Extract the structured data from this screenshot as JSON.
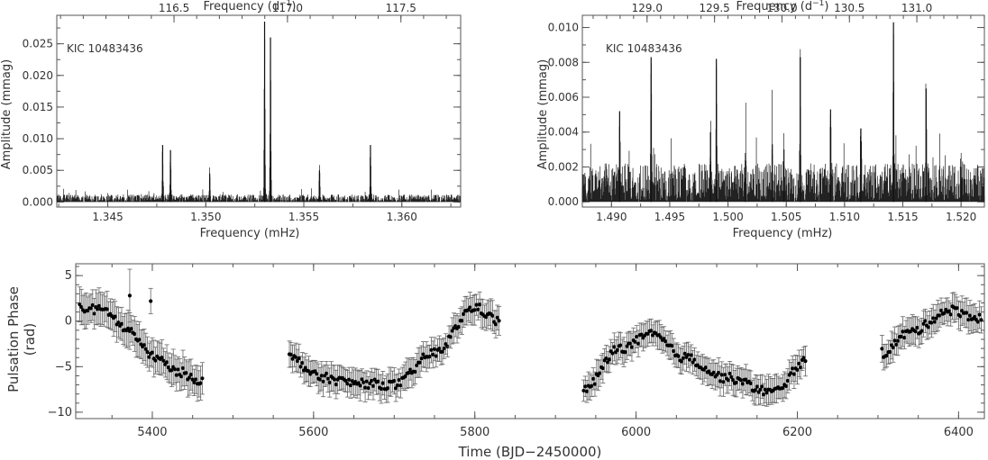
{
  "chart_data": [
    {
      "type": "line",
      "panel": "top-left",
      "annotation": "KIC 10483436",
      "xlabel": "Frequency (mHz)",
      "x2label": "Frequency (d",
      "x2label_sup": "−1",
      "x2label_close": ")",
      "ylabel": "Amplitude (mmag)",
      "xlim": [
        1.3424,
        1.363
      ],
      "ylim": [
        -0.0008,
        0.0295
      ],
      "xticks": [
        1.345,
        1.35,
        1.355,
        1.36
      ],
      "xtick_labels": [
        "1.345",
        "1.350",
        "1.355",
        "1.360"
      ],
      "yticks": [
        0.0,
        0.005,
        0.01,
        0.015,
        0.02,
        0.025
      ],
      "ytick_labels": [
        "0.000",
        "0.005",
        "0.010",
        "0.015",
        "0.020",
        "0.025"
      ],
      "x2ticks": [
        116.5,
        117.0,
        117.5
      ],
      "x2tick_labels": [
        "116.5",
        "117.0",
        "117.5"
      ],
      "noise_level": 0.0012,
      "peaks": [
        {
          "x": 1.3478,
          "y": 0.009
        },
        {
          "x": 1.3482,
          "y": 0.0082
        },
        {
          "x": 1.3502,
          "y": 0.0045
        },
        {
          "x": 1.353,
          "y": 0.0285
        },
        {
          "x": 1.3533,
          "y": 0.026
        },
        {
          "x": 1.3558,
          "y": 0.005
        },
        {
          "x": 1.3584,
          "y": 0.009
        }
      ]
    },
    {
      "type": "line",
      "panel": "top-right",
      "annotation": "KIC 10483436",
      "xlabel": "Frequency (mHz)",
      "x2label": "Frequency (d",
      "x2label_sup": "−1",
      "x2label_close": ")",
      "ylabel": "Amplitude (mmag)",
      "xlim": [
        1.4875,
        1.522
      ],
      "ylim": [
        -0.0003,
        0.0107
      ],
      "xticks": [
        1.49,
        1.495,
        1.5,
        1.505,
        1.51,
        1.515,
        1.52
      ],
      "xtick_labels": [
        "1.490",
        "1.495",
        "1.500",
        "1.505",
        "1.510",
        "1.515",
        "1.520"
      ],
      "yticks": [
        0.0,
        0.002,
        0.004,
        0.006,
        0.008,
        0.01
      ],
      "ytick_labels": [
        "0.000",
        "0.002",
        "0.004",
        "0.006",
        "0.008",
        "0.010"
      ],
      "x2ticks": [
        129.0,
        129.5,
        130.0,
        130.5,
        131.0
      ],
      "x2tick_labels": [
        "129.0",
        "129.5",
        "130.0",
        "130.5",
        "131.0"
      ],
      "noise_level": 0.0022,
      "peaks": [
        {
          "x": 1.4907,
          "y": 0.0052
        },
        {
          "x": 1.4934,
          "y": 0.0083
        },
        {
          "x": 1.4985,
          "y": 0.004
        },
        {
          "x": 1.499,
          "y": 0.0082
        },
        {
          "x": 1.5015,
          "y": 0.0028
        },
        {
          "x": 1.5038,
          "y": 0.0033
        },
        {
          "x": 1.5048,
          "y": 0.003
        },
        {
          "x": 1.5062,
          "y": 0.0083
        },
        {
          "x": 1.5088,
          "y": 0.0053
        },
        {
          "x": 1.5114,
          "y": 0.0042
        },
        {
          "x": 1.5142,
          "y": 0.0103
        },
        {
          "x": 1.517,
          "y": 0.0065
        },
        {
          "x": 1.52,
          "y": 0.002
        }
      ]
    },
    {
      "type": "scatter",
      "panel": "bottom",
      "xlabel": "Time (BJD−2450000)",
      "ylabel": "Pulsation Phase (rad)",
      "ylabel_lines": [
        "Pulsation Phase",
        "(rad)"
      ],
      "xlim": [
        5305,
        6432
      ],
      "ylim": [
        -10.7,
        6.3
      ],
      "xticks": [
        5400,
        5600,
        5800,
        6000,
        6200,
        6400
      ],
      "xtick_labels": [
        "5400",
        "5600",
        "5800",
        "6000",
        "6200",
        "6400"
      ],
      "yticks": [
        5,
        0,
        -5,
        -10
      ],
      "ytick_labels": [
        "5",
        "0",
        "−5",
        "−10"
      ],
      "segments": [
        {
          "x": [
            5310,
            5340,
            5370,
            5400,
            5430,
            5462
          ],
          "y": [
            1.4,
            1.2,
            -1.0,
            -3.8,
            -5.5,
            -6.5
          ],
          "error": 1.7
        },
        {
          "x": [
            5570,
            5610,
            5650,
            5700,
            5750,
            5800,
            5830
          ],
          "y": [
            -4.0,
            -6.2,
            -6.8,
            -7.0,
            -3.5,
            1.5,
            0.0
          ],
          "error": 1.4
        },
        {
          "x": [
            5935,
            5980,
            6020,
            6060,
            6110,
            6170,
            6210
          ],
          "y": [
            -7.5,
            -3.0,
            -1.5,
            -4.0,
            -6.2,
            -7.8,
            -4.5
          ],
          "error": 1.4
        },
        {
          "x": [
            6305,
            6340,
            6390,
            6428
          ],
          "y": [
            -3.5,
            -1.2,
            1.2,
            0.3
          ],
          "error": 1.4
        }
      ],
      "outliers": [
        {
          "x": 5372,
          "y": 2.8,
          "error": 2.9
        },
        {
          "x": 5398,
          "y": 2.2,
          "error": 1.4
        }
      ]
    }
  ]
}
